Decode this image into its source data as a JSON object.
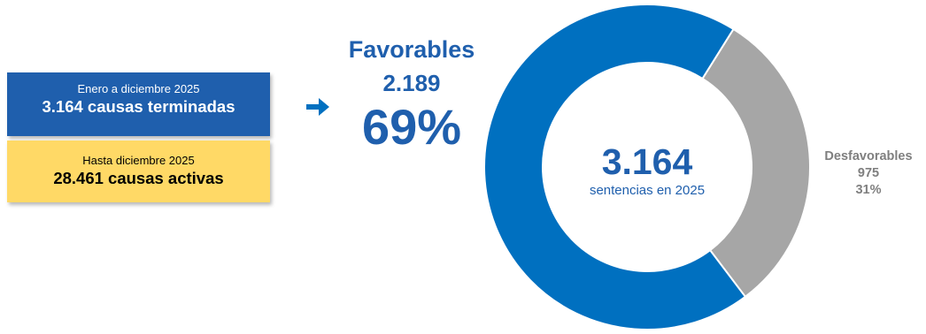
{
  "colors": {
    "favorable": "#0070C0",
    "unfavorable": "#A6A6A6",
    "blue_box": "#1F5FAD",
    "yellow_box": "#FFD966",
    "favorable_text": "#1F5FAD",
    "unfavorable_text": "#7F7F7F"
  },
  "summary": {
    "terminated": {
      "period": "Enero a diciembre 2025",
      "label": "3.164 causas terminadas"
    },
    "active": {
      "period": "Hasta diciembre 2025",
      "label": "28.461 causas activas"
    },
    "arrow_icon": "arrow-right-icon"
  },
  "favorable": {
    "label": "Favorables",
    "value": "2.189",
    "percent": "69%"
  },
  "unfavorable": {
    "label": "Desfavorables",
    "value": "975",
    "percent": "31%"
  },
  "center": {
    "total": "3.164",
    "caption": "sentencias en 2025"
  },
  "chart_data": {
    "type": "pie",
    "variant": "donut",
    "total": 3164,
    "categories": [
      "Favorables",
      "Desfavorables"
    ],
    "values": [
      2189,
      975
    ],
    "percents": [
      69,
      31
    ]
  }
}
